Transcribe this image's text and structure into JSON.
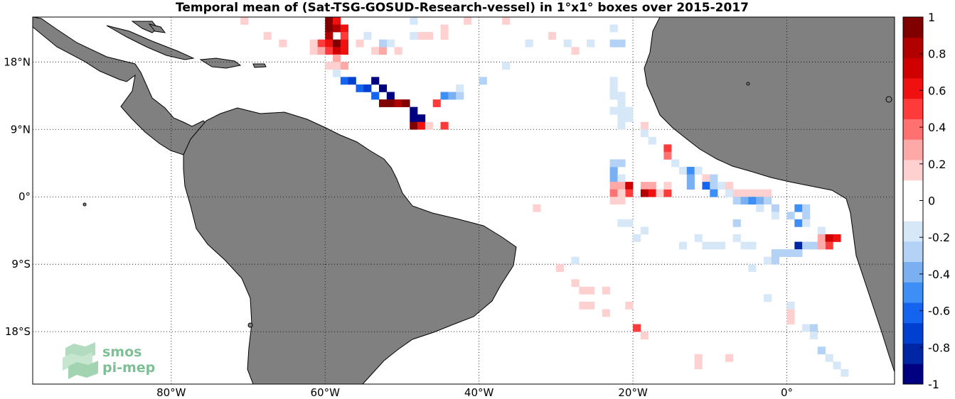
{
  "title": "Temporal mean of (Sat-TSG-GOSUD-Research-vessel) in 1°x1° boxes over 2015-2017",
  "map": {
    "lon_range": [
      -98,
      14
    ],
    "lat_range": [
      -25,
      24
    ],
    "lon_ticks": [
      {
        "value": -80,
        "label": "80°W"
      },
      {
        "value": -60,
        "label": "60°W"
      },
      {
        "value": -40,
        "label": "40°W"
      },
      {
        "value": -20,
        "label": "20°W"
      },
      {
        "value": 0,
        "label": "0°"
      }
    ],
    "lat_ticks": [
      {
        "value": 18,
        "label": "18°N"
      },
      {
        "value": 9,
        "label": "9°N"
      },
      {
        "value": 0,
        "label": "0°"
      },
      {
        "value": -9,
        "label": "9°S"
      },
      {
        "value": -18,
        "label": "18°S"
      }
    ],
    "grid": "dotted",
    "land_color": "#808080",
    "ocean_color": "#ffffff"
  },
  "colorbar": {
    "range": [
      -1,
      1
    ],
    "ticks": [
      "1",
      "0.8",
      "0.6",
      "0.4",
      "0.2",
      "0",
      "-0.2",
      "-0.4",
      "-0.6",
      "-0.8",
      "-1"
    ],
    "colors": [
      "#000080",
      "#0026a6",
      "#0040d0",
      "#1464f0",
      "#3d8ef5",
      "#7ab0f2",
      "#b3d2f5",
      "#d6e7f8",
      "#ffffff",
      "#ffffff",
      "#ffd0d0",
      "#ffa8a8",
      "#ff7070",
      "#ff3a3a",
      "#f01010",
      "#d00000",
      "#b00000",
      "#800000"
    ]
  },
  "chart_data": {
    "type": "heatmap",
    "cells": [
      [
        -60,
        23,
        1.0
      ],
      [
        -59,
        23,
        0.6
      ],
      [
        -60,
        22,
        0.9
      ],
      [
        -59,
        22,
        0.8
      ],
      [
        -58,
        22,
        0.6
      ],
      [
        -60,
        21,
        0.8
      ],
      [
        -58,
        21,
        0.5
      ],
      [
        -61,
        20,
        0.5
      ],
      [
        -60,
        20,
        0.6
      ],
      [
        -59,
        20,
        0.9
      ],
      [
        -58,
        20,
        0.6
      ],
      [
        -62,
        19,
        0.2
      ],
      [
        -61,
        19,
        0.3
      ],
      [
        -60,
        19,
        0.5
      ],
      [
        -59,
        19,
        0.7
      ],
      [
        -58,
        19,
        0.6
      ],
      [
        -59,
        18,
        0.3
      ],
      [
        -60,
        17,
        0.2
      ],
      [
        -59,
        17,
        0.2
      ],
      [
        -58,
        17,
        0.3
      ],
      [
        -59,
        16,
        -0.2
      ],
      [
        -71,
        23,
        0.2
      ],
      [
        -68,
        21,
        0.2
      ],
      [
        -66,
        20,
        0.2
      ],
      [
        -62,
        20,
        0.2
      ],
      [
        -56,
        20,
        0.2
      ],
      [
        -54,
        19,
        0.2
      ],
      [
        -53,
        19,
        0.3
      ],
      [
        -51,
        19,
        0.2
      ],
      [
        -48,
        21,
        0.2
      ],
      [
        -47,
        21,
        0.2
      ],
      [
        -45,
        21,
        0.2
      ],
      [
        -45,
        22,
        0.2
      ],
      [
        -42,
        23,
        0.2
      ],
      [
        -37,
        23,
        0.2
      ],
      [
        -31,
        21,
        0.2
      ],
      [
        -55,
        21,
        -0.2
      ],
      [
        -52,
        20,
        -0.2
      ],
      [
        -49,
        23,
        -0.2
      ],
      [
        -49,
        21,
        -0.2
      ],
      [
        -53,
        20,
        -0.3
      ],
      [
        -58,
        15,
        -0.6
      ],
      [
        -57,
        15,
        -0.7
      ],
      [
        -56,
        14,
        -0.6
      ],
      [
        -55,
        14,
        -0.7
      ],
      [
        -54,
        15,
        -0.9
      ],
      [
        -53,
        14,
        -1.0
      ],
      [
        -54,
        13,
        -0.6
      ],
      [
        -52,
        13,
        -1.0
      ],
      [
        -53,
        12,
        0.9
      ],
      [
        -52,
        12,
        0.9
      ],
      [
        -51,
        12,
        0.8
      ],
      [
        -50,
        12,
        0.9
      ],
      [
        -49,
        11,
        -0.9
      ],
      [
        -49,
        10,
        -1.0
      ],
      [
        -48,
        10,
        -0.9
      ],
      [
        -49,
        9,
        0.9
      ],
      [
        -48,
        9,
        0.6
      ],
      [
        -47,
        9,
        0.2
      ],
      [
        -45,
        9,
        0.5
      ],
      [
        -46,
        12,
        0.5
      ],
      [
        -45,
        13,
        -0.5
      ],
      [
        -44,
        13,
        -0.4
      ],
      [
        -43,
        13,
        -0.3
      ],
      [
        -43,
        14,
        -0.2
      ],
      [
        -40,
        15,
        -0.3
      ],
      [
        -37,
        17,
        -0.2
      ],
      [
        -34,
        20,
        -0.2
      ],
      [
        -29,
        20,
        -0.2
      ],
      [
        -28,
        19,
        0.2
      ],
      [
        -26,
        20,
        -0.2
      ],
      [
        -23,
        22,
        -0.2
      ],
      [
        -23,
        20,
        -0.3
      ],
      [
        -22,
        20,
        -0.3
      ],
      [
        -23,
        15,
        -0.2
      ],
      [
        -23,
        14,
        -0.2
      ],
      [
        -23,
        13,
        -0.2
      ],
      [
        -22,
        13,
        -0.2
      ],
      [
        -22,
        12,
        -0.2
      ],
      [
        -23,
        11,
        -0.2
      ],
      [
        -22,
        11,
        -0.2
      ],
      [
        -21,
        11,
        -0.2
      ],
      [
        -22,
        10,
        -0.2
      ],
      [
        -21,
        10,
        -0.2
      ],
      [
        -22,
        9,
        -0.2
      ],
      [
        -19,
        9,
        0.2
      ],
      [
        -19,
        8,
        -0.2
      ],
      [
        -18,
        7,
        -0.2
      ],
      [
        -16,
        6,
        0.5
      ],
      [
        -16,
        5,
        0.4
      ],
      [
        -15,
        4,
        -0.2
      ],
      [
        -14,
        3,
        -0.2
      ],
      [
        -13,
        3,
        -0.5
      ],
      [
        -12,
        3,
        -0.2
      ],
      [
        -13,
        2,
        -0.4
      ],
      [
        -13,
        1,
        -0.4
      ],
      [
        -11,
        2,
        0.2
      ],
      [
        -10,
        2,
        -0.3
      ],
      [
        -11,
        1,
        -0.6
      ],
      [
        -10,
        1,
        -0.3
      ],
      [
        -9,
        1,
        -0.2
      ],
      [
        -8,
        1,
        0.2
      ],
      [
        -10,
        0,
        -0.5
      ],
      [
        -8,
        0,
        -0.2
      ],
      [
        -7,
        0,
        0.2
      ],
      [
        -6,
        0,
        0.2
      ],
      [
        -5,
        0,
        0.2
      ],
      [
        -4,
        0,
        0.2
      ],
      [
        -3,
        0,
        0.2
      ],
      [
        -7,
        -1,
        -0.3
      ],
      [
        -6,
        -1,
        -0.4
      ],
      [
        -5,
        -1,
        -0.5
      ],
      [
        -4,
        -1,
        -0.4
      ],
      [
        -3,
        -1,
        -0.3
      ],
      [
        -4,
        -2,
        -0.2
      ],
      [
        -2,
        -2,
        -0.3
      ],
      [
        -23,
        3,
        -0.4
      ],
      [
        -23,
        2,
        -0.4
      ],
      [
        -22,
        2,
        -0.2
      ],
      [
        -23,
        4,
        -0.3
      ],
      [
        -22,
        4,
        -0.3
      ],
      [
        -23,
        1,
        0.3
      ],
      [
        -22,
        1,
        0.3
      ],
      [
        -21,
        1,
        0.7
      ],
      [
        -21,
        0,
        0.5
      ],
      [
        -23,
        0,
        0.4
      ],
      [
        -22,
        0,
        0.2
      ],
      [
        -19,
        1,
        0.3
      ],
      [
        -18,
        1,
        0.3
      ],
      [
        -19,
        0,
        0.8
      ],
      [
        -18,
        0,
        0.6
      ],
      [
        -17,
        0,
        0.2
      ],
      [
        -16,
        0,
        0.5
      ],
      [
        -16,
        1,
        0.2
      ],
      [
        -23,
        -1,
        0.2
      ],
      [
        -22,
        -1,
        0.2
      ],
      [
        -2,
        -3,
        -0.2
      ],
      [
        1,
        -2,
        -0.5
      ],
      [
        2,
        -2,
        -0.3
      ],
      [
        0,
        -3,
        -0.3
      ],
      [
        2,
        -3,
        -0.3
      ],
      [
        1,
        -4,
        -0.5
      ],
      [
        2,
        -4,
        -0.2
      ],
      [
        4,
        -5,
        -0.2
      ],
      [
        4,
        -6,
        0.3
      ],
      [
        5,
        -6,
        0.7
      ],
      [
        6,
        -6,
        0.6
      ],
      [
        5,
        -7,
        0.5
      ],
      [
        1,
        -7,
        -0.8
      ],
      [
        2,
        -7,
        -0.3
      ],
      [
        3,
        -7,
        -0.3
      ],
      [
        4,
        -7,
        0.3
      ],
      [
        1,
        -8,
        -0.3
      ],
      [
        -1,
        -8,
        -0.3
      ],
      [
        0,
        -8,
        -0.3
      ],
      [
        -2,
        -8,
        -0.3
      ],
      [
        -3,
        -9,
        -0.2
      ],
      [
        -2,
        -9,
        -0.3
      ],
      [
        -5,
        -10,
        -0.2
      ],
      [
        -21,
        -4,
        -0.2
      ],
      [
        -22,
        -4,
        -0.2
      ],
      [
        -19,
        -5,
        -0.2
      ],
      [
        -20,
        -6,
        -0.2
      ],
      [
        -14,
        -7,
        -0.2
      ],
      [
        -12,
        -6,
        -0.2
      ],
      [
        -11,
        -7,
        -0.2
      ],
      [
        -10,
        -7,
        -0.2
      ],
      [
        -9,
        -7,
        -0.2
      ],
      [
        -7,
        -4,
        -0.3
      ],
      [
        -7,
        -6,
        -0.2
      ],
      [
        -6,
        -7,
        -0.2
      ],
      [
        -5,
        -7,
        -0.2
      ],
      [
        -28,
        -9,
        -0.2
      ],
      [
        -30,
        -10,
        0.2
      ],
      [
        -28,
        -12,
        0.2
      ],
      [
        -27,
        -13,
        0.2
      ],
      [
        -26,
        -13,
        0.2
      ],
      [
        -24,
        -13,
        0.2
      ],
      [
        -27,
        -15,
        0.2
      ],
      [
        -24,
        -16,
        0.2
      ],
      [
        -21,
        -15,
        0.2
      ],
      [
        -26,
        -15,
        0.2
      ],
      [
        -20,
        -18,
        0.5
      ],
      [
        -19,
        -19,
        0.2
      ],
      [
        -3,
        -14,
        -0.2
      ],
      [
        0,
        -15,
        -0.2
      ],
      [
        0,
        -16,
        0.2
      ],
      [
        0,
        -17,
        0.2
      ],
      [
        2,
        -18,
        -0.2
      ],
      [
        3,
        -18,
        -0.3
      ],
      [
        3,
        -19,
        -0.2
      ],
      [
        4,
        -21,
        -0.3
      ],
      [
        5,
        -22,
        -0.2
      ],
      [
        6,
        -23,
        -0.2
      ],
      [
        7,
        -24,
        -0.2
      ],
      [
        -12,
        -22,
        0.2
      ],
      [
        -12,
        -23,
        0.2
      ],
      [
        -8,
        -22,
        0.2
      ],
      [
        -33,
        -2,
        0.2
      ]
    ]
  },
  "logo": {
    "line1": "smos",
    "line2": "pi-mep"
  }
}
